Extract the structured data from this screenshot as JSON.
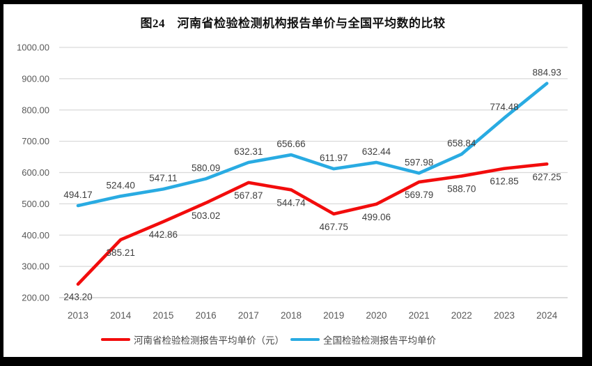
{
  "frame": {
    "border_color": "#000000",
    "background": "#ffffff"
  },
  "chart_data": {
    "type": "line",
    "title": "图24　河南省检验检测机构报告单价与全国平均数的比较",
    "categories": [
      "2013",
      "2014",
      "2015",
      "2016",
      "2017",
      "2018",
      "2019",
      "2020",
      "2021",
      "2022",
      "2023",
      "2024"
    ],
    "series": [
      {
        "name": "河南省检验检测报告平均单价（元）",
        "color": "#f20c0c",
        "values": [
          243.2,
          385.21,
          442.86,
          503.02,
          567.87,
          544.74,
          467.75,
          499.06,
          569.79,
          588.7,
          612.85,
          627.25
        ],
        "label_position": "below"
      },
      {
        "name": "全国检验检测报告平均单价",
        "color": "#29abe2",
        "values": [
          494.17,
          524.4,
          547.11,
          580.09,
          632.31,
          656.66,
          611.97,
          632.44,
          597.98,
          658.84,
          774.48,
          884.93
        ],
        "label_position": "above"
      }
    ],
    "ylim": [
      200,
      1000
    ],
    "ytick_step": 100,
    "ytick_format": "0.00",
    "value_format": "0.00",
    "grid": true,
    "legend_position": "bottom",
    "grid_color": "#d9d9d9",
    "axis_color": "#c6c6c6",
    "tick_label_color": "#595959",
    "data_label_color": "#3f3f3f"
  }
}
